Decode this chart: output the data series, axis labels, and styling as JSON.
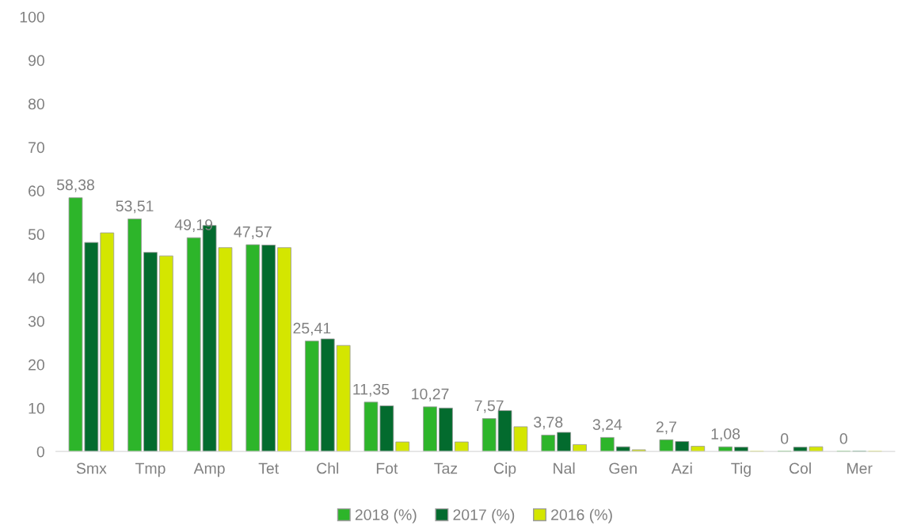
{
  "chart_data": {
    "type": "bar",
    "categories": [
      "Smx",
      "Tmp",
      "Amp",
      "Tet",
      "Chl",
      "Fot",
      "Taz",
      "Cip",
      "Nal",
      "Gen",
      "Azi",
      "Tig",
      "Col",
      "Mer"
    ],
    "series": [
      {
        "name": "2018 (%)",
        "color": "#2db52a",
        "values": [
          58.38,
          53.51,
          49.19,
          47.57,
          25.41,
          11.35,
          10.27,
          7.57,
          3.78,
          3.24,
          2.7,
          1.08,
          0,
          0
        ],
        "value_labels": [
          "58,38",
          "53,51",
          "49,19",
          "47,57",
          "25,41",
          "11,35",
          "10,27",
          "7,57",
          "3,78",
          "3,24",
          "2,7",
          "1,08",
          "0",
          "0"
        ]
      },
      {
        "name": "2017 (%)",
        "color": "#036b2e",
        "values": [
          48.1,
          45.8,
          52,
          47.5,
          25.9,
          10.5,
          10,
          9.4,
          4.4,
          1.1,
          2.3,
          1.0,
          1.0,
          0
        ]
      },
      {
        "name": "2016 (%)",
        "color": "#d4e600",
        "values": [
          50.3,
          45,
          46.9,
          46.9,
          24.4,
          2.2,
          2.2,
          5.7,
          1.6,
          0.4,
          1.2,
          0,
          1.1,
          0
        ]
      }
    ],
    "ylim": [
      0,
      100
    ],
    "yticks": [
      0,
      10,
      20,
      30,
      40,
      50,
      60,
      70,
      80,
      90,
      100
    ],
    "grid": false,
    "legend": "bottom"
  }
}
